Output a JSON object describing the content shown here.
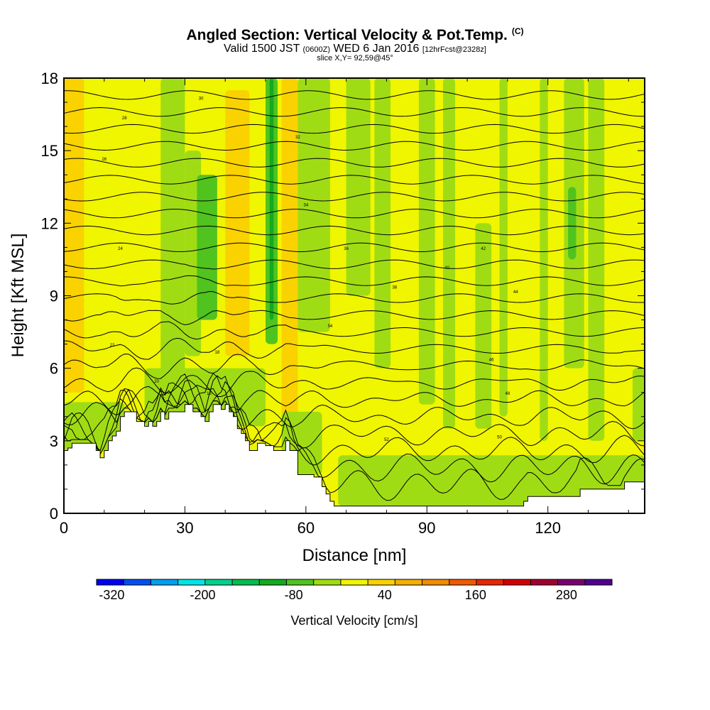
{
  "header": {
    "title": "Angled Section: Vertical Velocity & Pot.Temp.",
    "copyright": "(C)",
    "valid_prefix": "Valid 1500 JST",
    "valid_utc": "(0600Z)",
    "valid_date": "WED 6 Jan 2016",
    "forecast": "[12hrFcst@2328z]",
    "slice": "slice X,Y= 92,59@45°"
  },
  "chart_data": {
    "type": "heatmap",
    "xlabel": "Distance [nm]",
    "ylabel": "Height [Kft MSL]",
    "xlim": [
      0,
      144
    ],
    "ylim": [
      0,
      18
    ],
    "x_ticks": [
      0,
      30,
      60,
      90,
      120
    ],
    "y_ticks": [
      0,
      3,
      6,
      9,
      12,
      15,
      18
    ],
    "colorbar": {
      "label": "Vertical Velocity [cm/s]",
      "range": [
        -340,
        340
      ],
      "step": 40,
      "tick_values": [
        -320,
        -200,
        -80,
        40,
        160,
        280
      ],
      "tick_labels": [
        "-320",
        "-200",
        "-80",
        "40",
        "160",
        "280"
      ],
      "colors": [
        "#0000f0",
        "#0050f0",
        "#00a0f0",
        "#00e6e6",
        "#00d28c",
        "#00be50",
        "#14aa1e",
        "#50c31e",
        "#a0dc14",
        "#f0f500",
        "#fad200",
        "#f5af00",
        "#f08c00",
        "#f05a00",
        "#e62800",
        "#d20000",
        "#a00032",
        "#78006e",
        "#50008c"
      ]
    },
    "terrain_profile": {
      "x": [
        0,
        1,
        2,
        4,
        6,
        8,
        9,
        10,
        11,
        12,
        13,
        14,
        15,
        16,
        18,
        20,
        21,
        22,
        23,
        24,
        25,
        26,
        28,
        30,
        32,
        33,
        34,
        35,
        36,
        37,
        38,
        39,
        40,
        41,
        42,
        43,
        44,
        45,
        46,
        48,
        50,
        52,
        54,
        55,
        56,
        58,
        60,
        62,
        64,
        65,
        66,
        67,
        68,
        70,
        80,
        100,
        113,
        114,
        115,
        127,
        128,
        138,
        139,
        144
      ],
      "y": [
        2.6,
        2.7,
        2.9,
        2.9,
        2.9,
        2.6,
        2.3,
        2.6,
        3.0,
        3.2,
        3.4,
        4.0,
        4.2,
        4.2,
        3.8,
        3.6,
        3.8,
        3.6,
        3.8,
        4.2,
        3.9,
        4.2,
        4.2,
        4.5,
        4.2,
        4.2,
        4.0,
        3.8,
        4.2,
        4.5,
        4.5,
        4.3,
        4.5,
        4.2,
        4.0,
        3.5,
        3.3,
        3.0,
        2.6,
        2.9,
        2.8,
        2.6,
        2.6,
        3.0,
        2.6,
        1.6,
        1.6,
        1.5,
        1.1,
        0.8,
        0.5,
        0.3,
        0.3,
        0.3,
        0.3,
        0.3,
        0.3,
        0.5,
        0.7,
        0.7,
        1.0,
        1.0,
        1.3,
        1.3
      ]
    },
    "velocity_background": 20,
    "velocity_bands": [
      {
        "x0": 0,
        "x1": 5,
        "y0": 5.0,
        "y1": 18,
        "v": 60
      },
      {
        "x0": 5,
        "x1": 11,
        "y0": 4.5,
        "y1": 18,
        "v": 20
      },
      {
        "x0": 13,
        "x1": 21,
        "y0": 10.5,
        "y1": 17.5,
        "v": 20
      },
      {
        "x0": 24,
        "x1": 30,
        "y0": 5.0,
        "y1": 18,
        "v": -20
      },
      {
        "x0": 30,
        "x1": 34,
        "y0": 6.5,
        "y1": 15.0,
        "v": -20
      },
      {
        "x0": 33,
        "x1": 38,
        "y0": 8.0,
        "y1": 14.0,
        "v": -60
      },
      {
        "x0": 40,
        "x1": 46,
        "y0": 6.5,
        "y1": 17.5,
        "v": 60
      },
      {
        "x0": 50,
        "x1": 53,
        "y0": 7.0,
        "y1": 18,
        "v": -60
      },
      {
        "x0": 51,
        "x1": 52,
        "y0": 8.0,
        "y1": 18,
        "v": -100
      },
      {
        "x0": 54,
        "x1": 58,
        "y0": 4.0,
        "y1": 18,
        "v": 60
      },
      {
        "x0": 58,
        "x1": 66,
        "y0": 7.5,
        "y1": 18,
        "v": -20
      },
      {
        "x0": 70,
        "x1": 76,
        "y0": 9.0,
        "y1": 18,
        "v": -20
      },
      {
        "x0": 77,
        "x1": 81,
        "y0": 6.0,
        "y1": 18,
        "v": -20
      },
      {
        "x0": 88,
        "x1": 92,
        "y0": 4.5,
        "y1": 18,
        "v": -20
      },
      {
        "x0": 94,
        "x1": 97,
        "y0": 3.5,
        "y1": 18,
        "v": -20
      },
      {
        "x0": 102,
        "x1": 106,
        "y0": 3.5,
        "y1": 12.0,
        "v": -20
      },
      {
        "x0": 108,
        "x1": 110,
        "y0": 4.0,
        "y1": 18,
        "v": -20
      },
      {
        "x0": 118,
        "x1": 120,
        "y0": 3.0,
        "y1": 18,
        "v": -20
      },
      {
        "x0": 124,
        "x1": 129,
        "y0": 6.0,
        "y1": 18,
        "v": -20
      },
      {
        "x0": 125,
        "x1": 127,
        "y0": 10.5,
        "y1": 13.5,
        "v": -60
      },
      {
        "x0": 130,
        "x1": 134,
        "y0": 3.0,
        "y1": 18,
        "v": -20
      },
      {
        "x0": 141,
        "x1": 144,
        "y0": 3.0,
        "y1": 6.0,
        "v": -20
      },
      {
        "x0": 0,
        "x1": 15,
        "y0": 2.6,
        "y1": 4.6,
        "v": -20
      },
      {
        "x0": 20,
        "x1": 50,
        "y0": 3.6,
        "y1": 6.0,
        "v": -20
      },
      {
        "x0": 54,
        "x1": 64,
        "y0": 1.6,
        "y1": 4.2,
        "v": -20
      },
      {
        "x0": 68,
        "x1": 144,
        "y0": 0.3,
        "y1": 2.4,
        "v": -20
      }
    ],
    "contour_labels": [
      "14",
      "16",
      "18",
      "20",
      "22",
      "24",
      "26",
      "28",
      "30",
      "32",
      "34",
      "36",
      "38",
      "40",
      "42",
      "44",
      "46",
      "48",
      "50",
      "52",
      "54"
    ]
  }
}
